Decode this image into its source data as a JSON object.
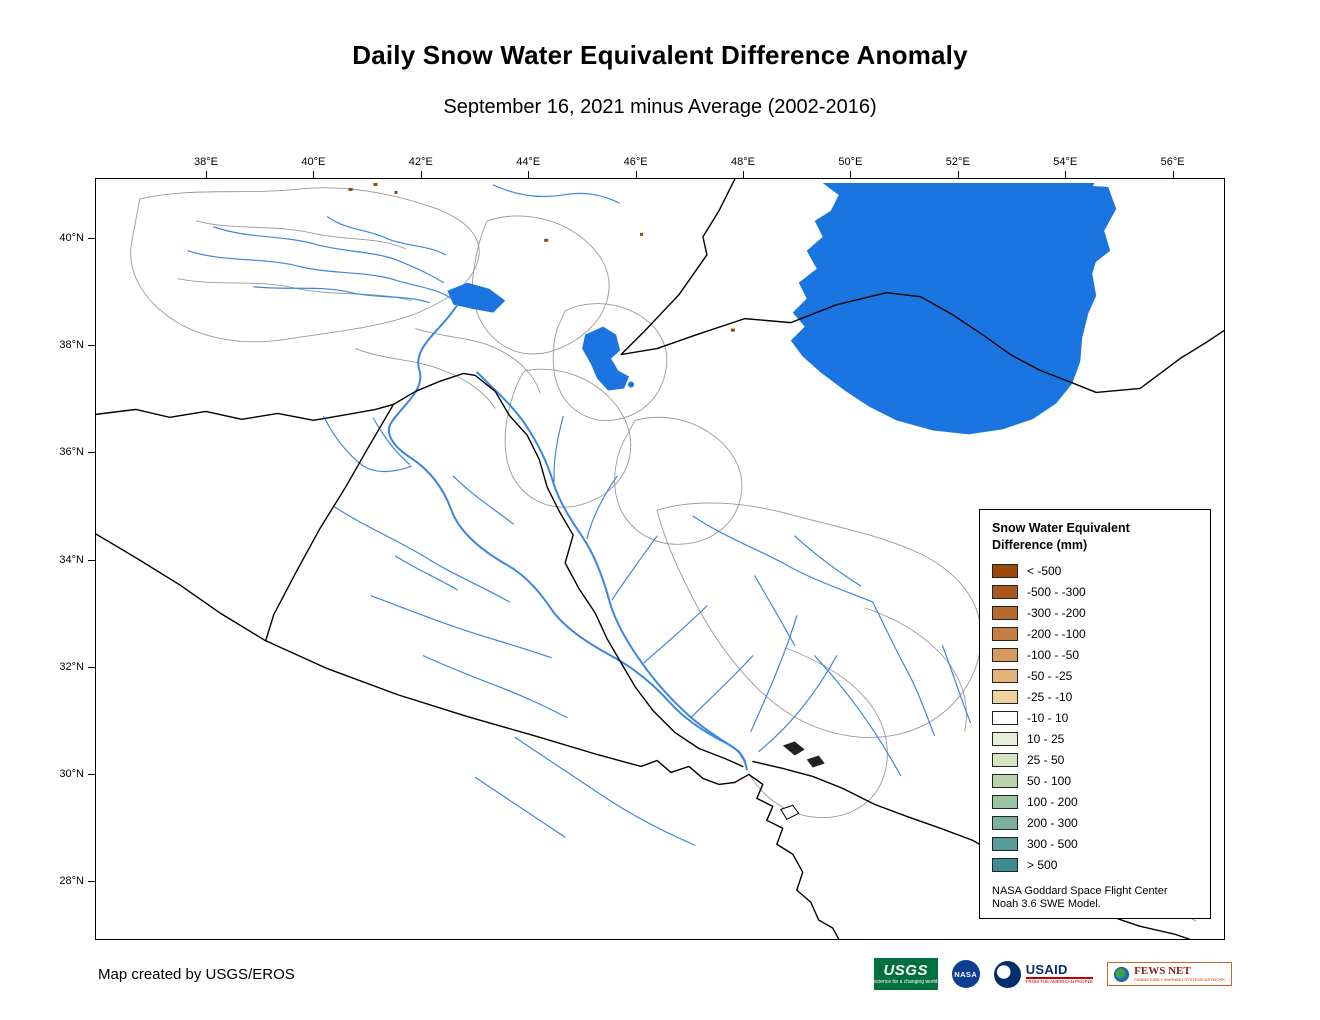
{
  "title": "Daily Snow Water Equivalent Difference Anomaly",
  "subtitle": "September 16, 2021 minus Average (2002-2016)",
  "map": {
    "lon_labels": [
      "38°E",
      "40°E",
      "42°E",
      "44°E",
      "46°E",
      "48°E",
      "50°E",
      "52°E",
      "54°E",
      "56°E"
    ],
    "lat_labels": [
      "40°N",
      "38°N",
      "36°N",
      "34°N",
      "32°N",
      "30°N",
      "28°N"
    ],
    "colors": {
      "water": "#1b75e0",
      "river": "#3c86e0",
      "border": "#000000",
      "watershed": "#999999"
    }
  },
  "legend": {
    "title_line1": "Snow Water Equivalent",
    "title_line2": "Difference (mm)",
    "entries": [
      {
        "label": "< -500",
        "color": "#9c4a0c"
      },
      {
        "label": "-500 - -300",
        "color": "#a85a1c"
      },
      {
        "label": "-300 - -200",
        "color": "#b56b2e"
      },
      {
        "label": "-200 - -100",
        "color": "#c48044"
      },
      {
        "label": "-100 - -50",
        "color": "#d49a5e"
      },
      {
        "label": "-50 - -25",
        "color": "#e2b57c"
      },
      {
        "label": "-25 - -10",
        "color": "#eed49c"
      },
      {
        "label": "-10 - 10",
        "color": "#ffffff"
      },
      {
        "label": "10 - 25",
        "color": "#e6f0d4"
      },
      {
        "label": "25 - 50",
        "color": "#d2e5c1"
      },
      {
        "label": "50 - 100",
        "color": "#b8d5ad"
      },
      {
        "label": "100 - 200",
        "color": "#9ac5a2"
      },
      {
        "label": "200 - 300",
        "color": "#79b09e"
      },
      {
        "label": "300 - 500",
        "color": "#579c9a"
      },
      {
        "label": "> 500",
        "color": "#3e8c90"
      }
    ],
    "note_line1": "NASA Goddard Space Flight Center",
    "note_line2": "Noah 3.6 SWE Model."
  },
  "footer": {
    "credit": "Map created by USGS/EROS"
  },
  "logos": {
    "usgs": {
      "name": "USGS",
      "tagline": "science for a changing world"
    },
    "nasa": {
      "name": "NASA"
    },
    "usaid": {
      "name": "USAID",
      "tagline": "FROM THE AMERICAN PEOPLE"
    },
    "fewsnet": {
      "name": "FEWS NET",
      "tagline": "FAMINE EARLY WARNING SYSTEMS NETWORK"
    }
  }
}
